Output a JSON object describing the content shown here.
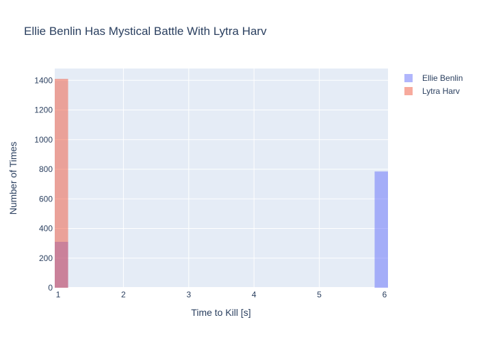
{
  "chart_data": {
    "type": "bar",
    "title": "Ellie Benlin Has Mystical Battle With Lytra Harv",
    "xlabel": "Time to Kill [s]",
    "ylabel": "Number of Times",
    "xlim": [
      1,
      6
    ],
    "ylim": [
      0,
      1480
    ],
    "x_ticks": [
      1,
      2,
      3,
      4,
      5,
      6
    ],
    "y_ticks": [
      0,
      200,
      400,
      600,
      800,
      1000,
      1200,
      1400
    ],
    "grid": true,
    "barmode": "overlay",
    "legend_position": "top-right",
    "series": [
      {
        "name": "Ellie Benlin",
        "color": "#636efa",
        "opacity": 0.5,
        "bins": [
          {
            "x0": 1.0,
            "x1": 1.1,
            "value": 310
          },
          {
            "x0": 5.9,
            "x1": 6.0,
            "value": 785
          }
        ]
      },
      {
        "name": "Lytra Harv",
        "color": "#ef553b",
        "opacity": 0.5,
        "bins": [
          {
            "x0": 1.0,
            "x1": 1.1,
            "value": 1410
          }
        ]
      }
    ]
  }
}
